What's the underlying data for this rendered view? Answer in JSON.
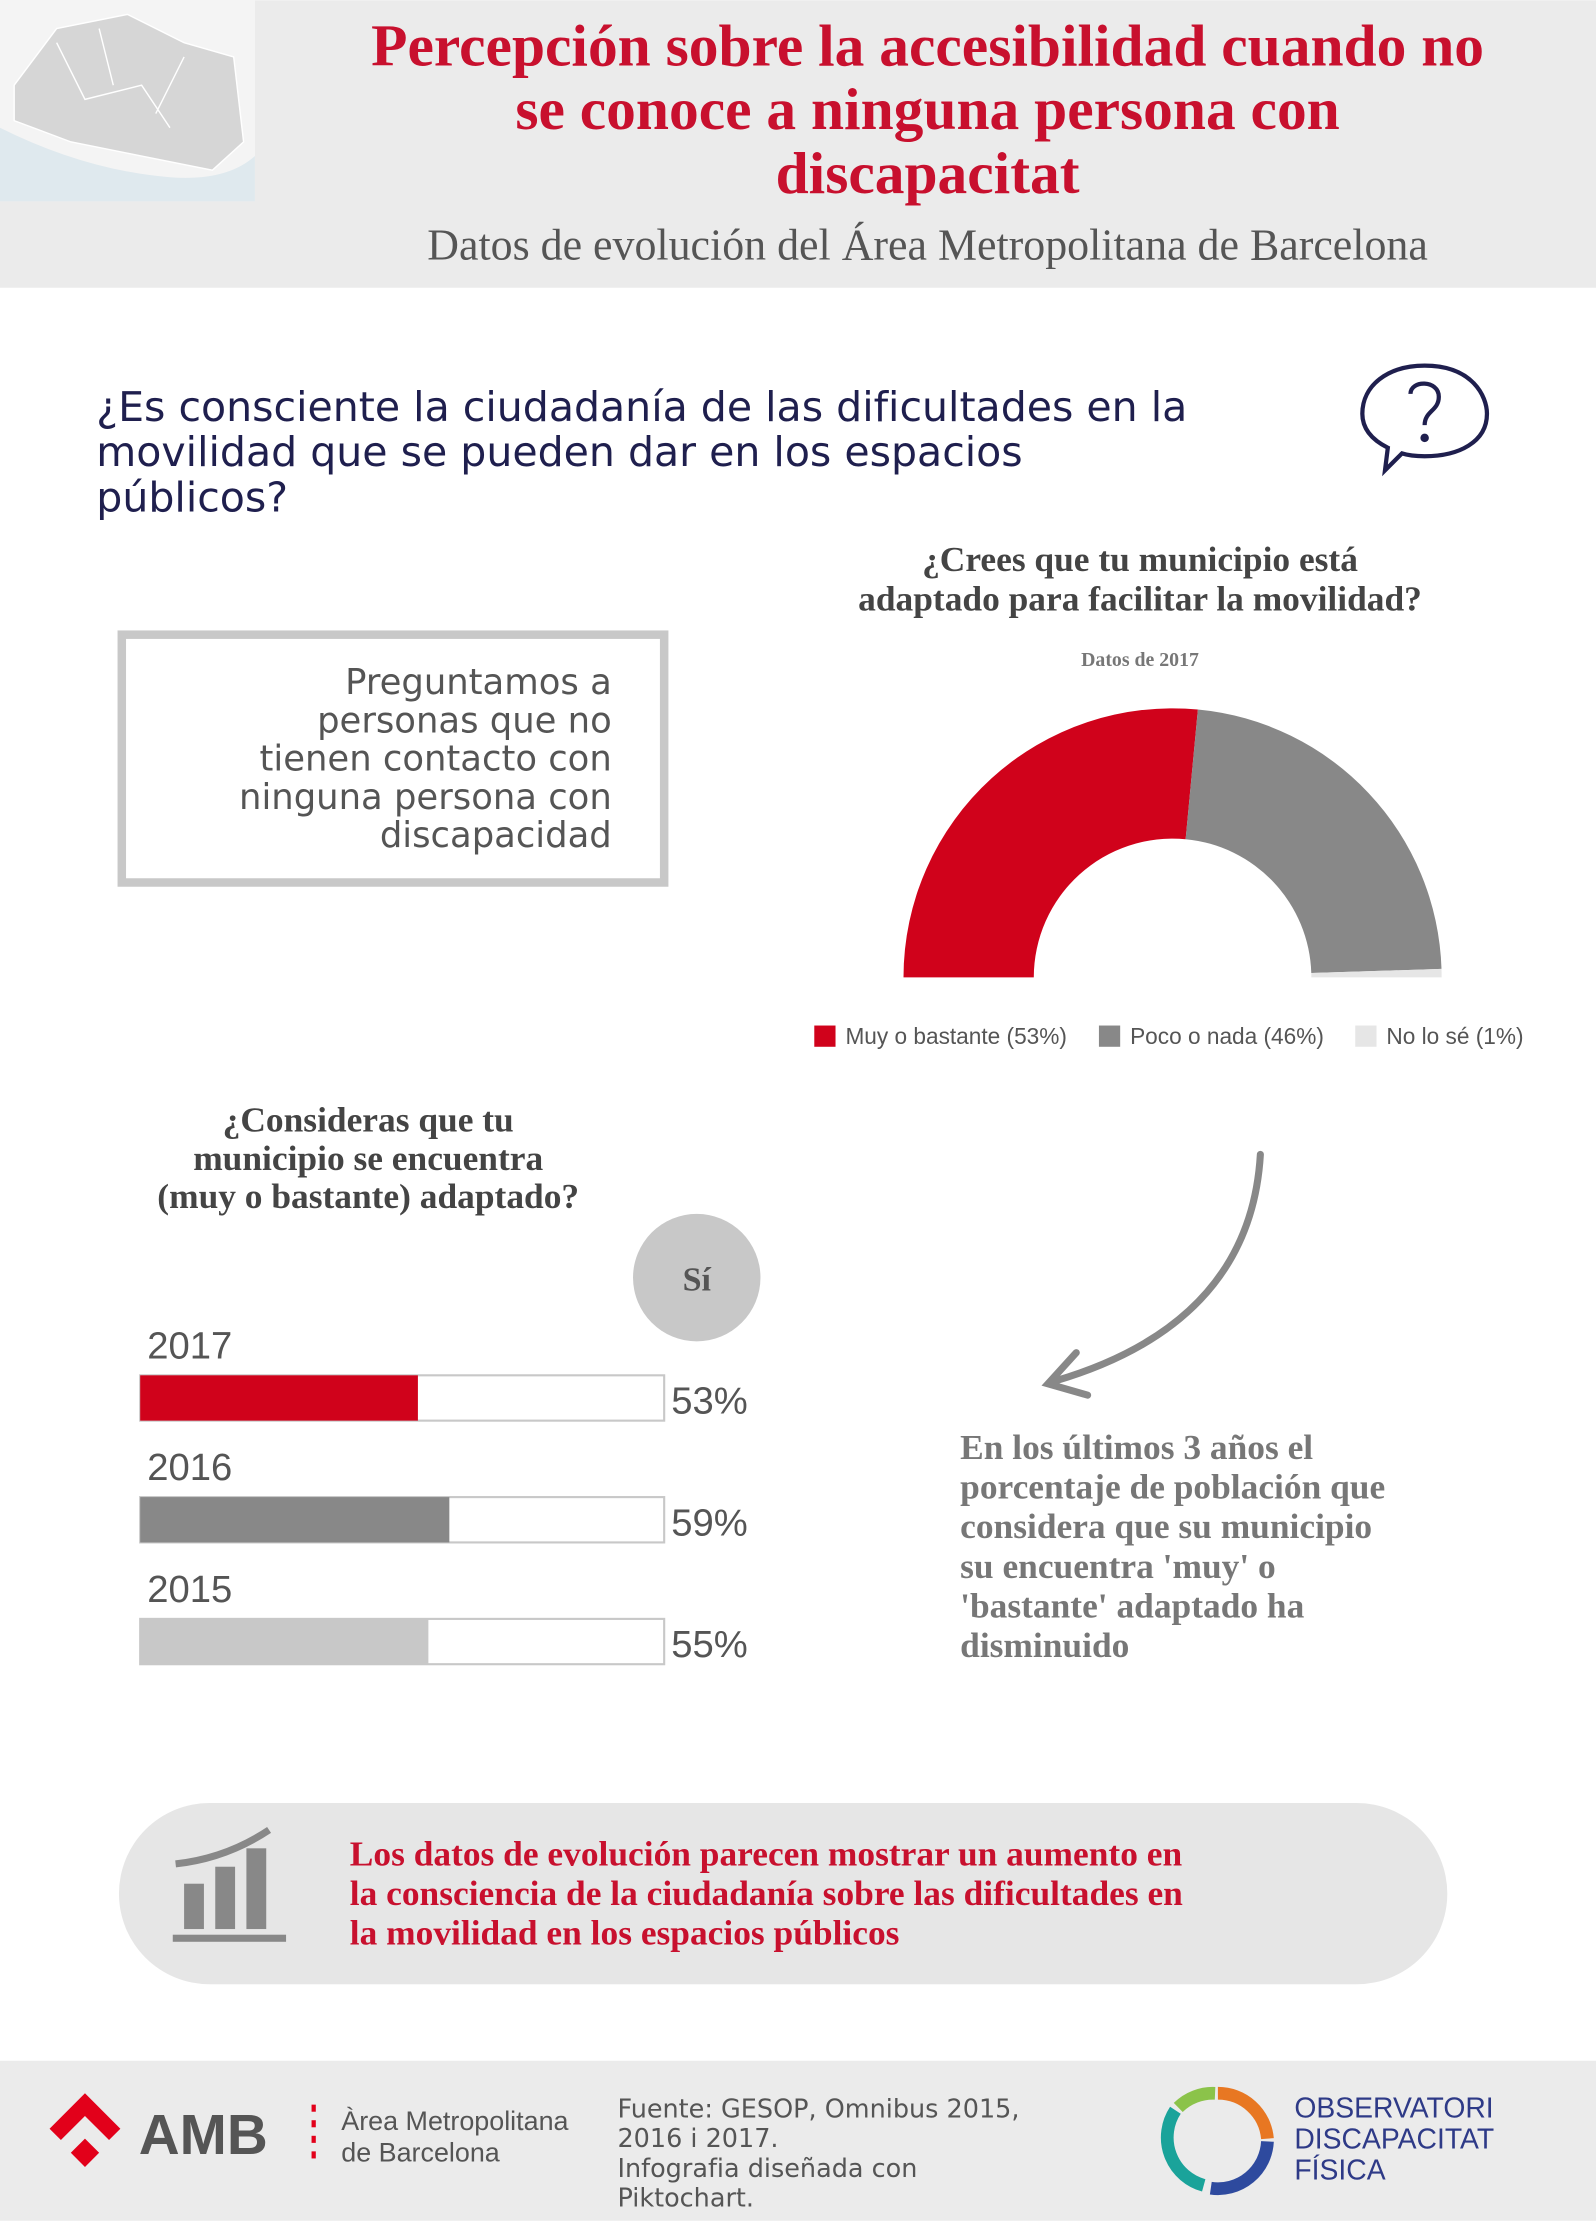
{
  "header": {
    "title_lines": [
      "Percepción sobre la accesibilidad cuando no",
      "se conoce a ninguna persona con",
      "discapacitat"
    ],
    "subtitle": "Datos de evolución del Área Metropolitana de Barcelona"
  },
  "question_lines": [
    "¿Es consciente la ciudadanía de las dificultades en la",
    "movilidad que se pueden dar en los espacios",
    "públicos?"
  ],
  "box_lines": [
    "Preguntamos a",
    "personas que no",
    "tienen contacto con",
    "ninguna persona con",
    "discapacidad"
  ],
  "chart_data": [
    {
      "type": "pie",
      "title_lines": [
        "¿Crees que tu municipio está",
        "adaptado para facilitar la movilidad?"
      ],
      "subtitle": "Datos de 2017",
      "categories": [
        "Muy o bastante (53%)",
        "Poco o nada (46%)",
        "No lo sé (1%)"
      ],
      "values": [
        53,
        46,
        1
      ],
      "colors": [
        "#d0021b",
        "#888888",
        "#e6e6e6"
      ]
    },
    {
      "type": "bar",
      "title_lines": [
        "¿Consideras que tu",
        "municipio se encuentra",
        "(muy o bastante) adaptado?"
      ],
      "column_label": "Sí",
      "categories": [
        "2017",
        "2016",
        "2015"
      ],
      "values": [
        53,
        59,
        55
      ],
      "value_labels": [
        "53%",
        "59%",
        "55%"
      ],
      "colors": [
        "#d0021b",
        "#888888",
        "#c8c8c8"
      ],
      "xlim": [
        0,
        100
      ]
    }
  ],
  "note_lines": [
    "En los últimos 3 años el",
    "porcentaje de población que",
    "considera que su municipio",
    "su encuentra 'muy' o",
    "'bastante' adaptado ha",
    "disminuido"
  ],
  "conclusion_lines": [
    "Los datos de evolución parecen mostrar un aumento en",
    "la consciencia de la ciudadanía sobre las dificultades en",
    "la movilidad en los espacios públicos"
  ],
  "footer": {
    "amb": "AMB",
    "amb_name_lines": [
      "Àrea Metropolitana",
      "de Barcelona"
    ],
    "source_lines": [
      "Fuente: GESOP, Omnibus 2015,",
      "2016 i 2017.",
      "Infografia diseñada con",
      "Piktochart."
    ],
    "observatori_lines": [
      "OBSERVATORI",
      "DISCAPACITAT",
      "FÍSICA"
    ]
  }
}
